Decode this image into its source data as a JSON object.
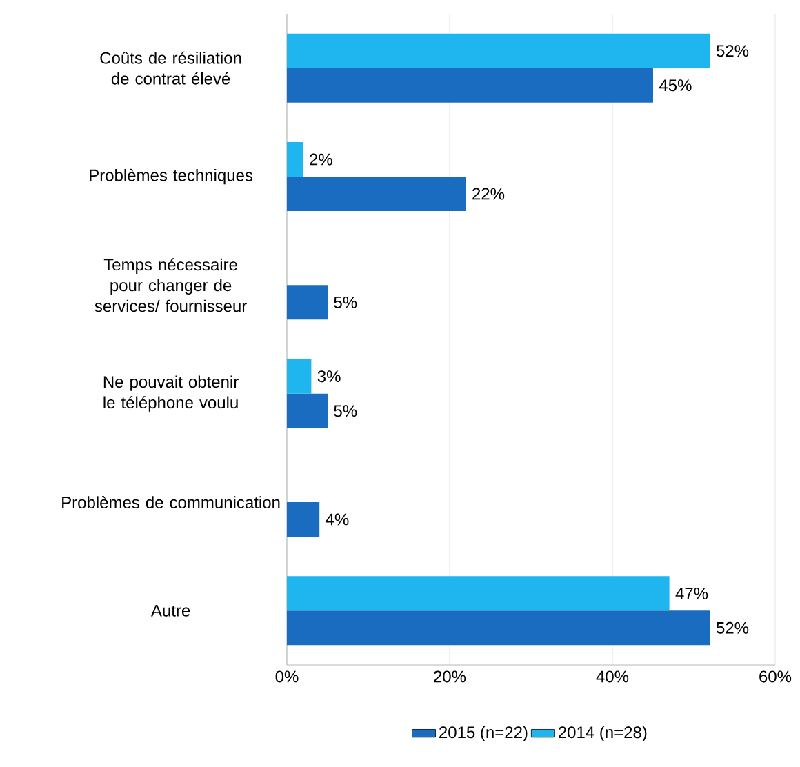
{
  "chart_data": {
    "type": "bar",
    "orientation": "horizontal",
    "categories": [
      "Coûts de résiliation de contrat élevé",
      "Problèmes techniques",
      "Temps nécessaire pour changer de services/ fournisseur",
      "Ne pouvait obtenir le téléphone voulu",
      "Problèmes de communication",
      "Autre"
    ],
    "series": [
      {
        "name": "2015 (n=22)",
        "color": "#1a6cc0",
        "values": [
          45,
          22,
          5,
          5,
          4,
          52
        ],
        "value_labels": [
          "45%",
          "22%",
          "5%",
          "5%",
          "4%",
          "52%"
        ]
      },
      {
        "name": "2014 (n=28)",
        "color": "#1fb6ef",
        "values": [
          52,
          2,
          null,
          3,
          null,
          47
        ],
        "value_labels": [
          "52%",
          "2%",
          null,
          "3%",
          null,
          "47%"
        ]
      }
    ],
    "xlim": [
      0,
      60
    ],
    "xticks": [
      {
        "value": 0,
        "label": "0%"
      },
      {
        "value": 20,
        "label": "20%"
      },
      {
        "value": 40,
        "label": "40%"
      },
      {
        "value": 60,
        "label": "60%"
      }
    ],
    "grid": "x",
    "legend": "bottom"
  }
}
